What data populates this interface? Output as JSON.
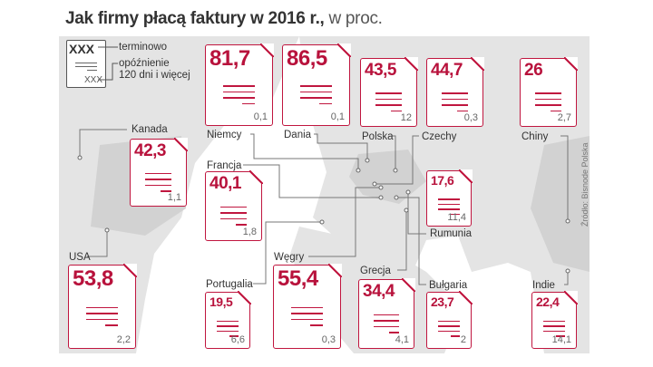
{
  "title": {
    "main": "Jak firmy płacą faktury w 2016 r.,",
    "unit": " w proc."
  },
  "legend": {
    "sample_value": "XXX",
    "sample_small": "XXX",
    "on_time_label": "terminowo",
    "late_label_1": "opóźnienie",
    "late_label_2": "120 dni i więcej"
  },
  "source": "Źródło: Bisnode Polska",
  "colors": {
    "accent": "#c0163f",
    "map": "#e4e4e4"
  },
  "countries": [
    {
      "name": "Niemcy",
      "on_time": "81,7",
      "late_120": "0,1"
    },
    {
      "name": "Dania",
      "on_time": "86,5",
      "late_120": "0,1"
    },
    {
      "name": "Polska",
      "on_time": "43,5",
      "late_120": "12"
    },
    {
      "name": "Czechy",
      "on_time": "44,7",
      "late_120": "0,3"
    },
    {
      "name": "Chiny",
      "on_time": "26",
      "late_120": "2,7"
    },
    {
      "name": "Kanada",
      "on_time": "42,3",
      "late_120": "1,1"
    },
    {
      "name": "Francja",
      "on_time": "40,1",
      "late_120": "1,8"
    },
    {
      "name": "Rumunia",
      "on_time": "17,6",
      "late_120": "11,4"
    },
    {
      "name": "USA",
      "on_time": "53,8",
      "late_120": "2,2"
    },
    {
      "name": "Portugalia",
      "on_time": "19,5",
      "late_120": "6,6"
    },
    {
      "name": "Węgry",
      "on_time": "55,4",
      "late_120": "0,3"
    },
    {
      "name": "Grecja",
      "on_time": "34,4",
      "late_120": "4,1"
    },
    {
      "name": "Bułgaria",
      "on_time": "23,7",
      "late_120": "2"
    },
    {
      "name": "Indie",
      "on_time": "22,4",
      "late_120": "14,1"
    }
  ]
}
